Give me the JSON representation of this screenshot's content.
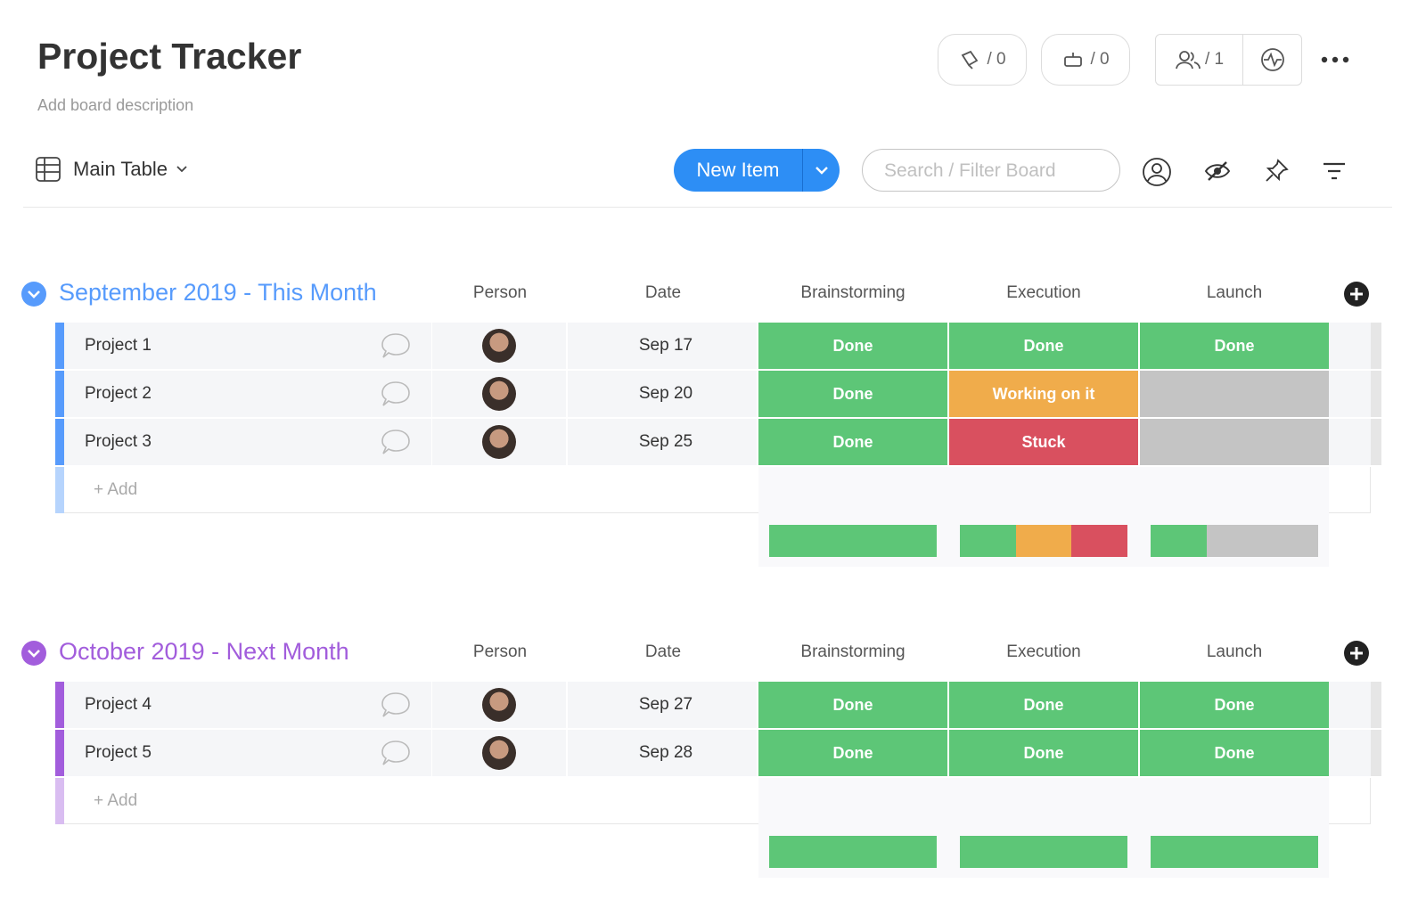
{
  "header": {
    "title": "Project Tracker",
    "description": "Add board description",
    "badges": [
      "/ 0",
      "/ 0",
      "/ 1"
    ]
  },
  "toolbar": {
    "view": "Main Table",
    "new_item": "New Item",
    "search_placeholder": "Search / Filter Board"
  },
  "groups": [
    {
      "title": "September 2019 - This Month",
      "color": "#579bfc",
      "add_color": "#b6d4fd",
      "columns": [
        "Person",
        "Date",
        "Brainstorming",
        "Execution",
        "Launch"
      ],
      "rows": [
        {
          "name": "Project 1",
          "date": "Sep 17",
          "statuses": [
            {
              "label": "Done",
              "color": "#5dc677"
            },
            {
              "label": "Done",
              "color": "#5dc677"
            },
            {
              "label": "Done",
              "color": "#5dc677"
            }
          ]
        },
        {
          "name": "Project 2",
          "date": "Sep 20",
          "statuses": [
            {
              "label": "Done",
              "color": "#5dc677"
            },
            {
              "label": "Working on it",
              "color": "#f0ac4b"
            },
            {
              "label": null,
              "color": "#c4c4c4"
            }
          ]
        },
        {
          "name": "Project 3",
          "date": "Sep 25",
          "statuses": [
            {
              "label": "Done",
              "color": "#5dc677"
            },
            {
              "label": "Stuck",
              "color": "#d9505f"
            },
            {
              "label": null,
              "color": "#c4c4c4"
            }
          ]
        }
      ],
      "add_label": "+ Add"
    },
    {
      "title": "October 2019 - Next Month",
      "color": "#a25ddc",
      "add_color": "#d9bdf1",
      "columns": [
        "Person",
        "Date",
        "Brainstorming",
        "Execution",
        "Launch"
      ],
      "rows": [
        {
          "name": "Project 4",
          "date": "Sep 27",
          "statuses": [
            {
              "label": "Done",
              "color": "#5dc677"
            },
            {
              "label": "Done",
              "color": "#5dc677"
            },
            {
              "label": "Done",
              "color": "#5dc677"
            }
          ]
        },
        {
          "name": "Project 5",
          "date": "Sep 28",
          "statuses": [
            {
              "label": "Done",
              "color": "#5dc677"
            },
            {
              "label": "Done",
              "color": "#5dc677"
            },
            {
              "label": "Done",
              "color": "#5dc677"
            }
          ]
        }
      ],
      "add_label": "+ Add"
    }
  ]
}
